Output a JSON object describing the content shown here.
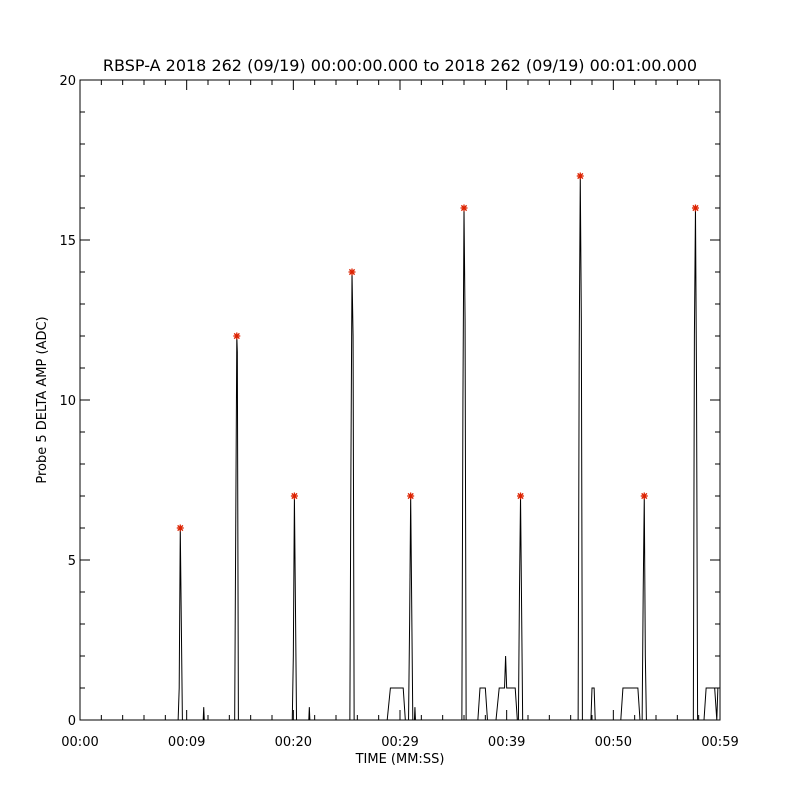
{
  "chart_data": {
    "type": "line",
    "title": "RBSP-A 2018 262 (09/19) 00:00:00.000 to 2018 262 (09/19) 00:01:00.000",
    "xlabel": "TIME (MM:SS)",
    "ylabel": "Probe 5 DELTA AMP (ADC)",
    "xlim": [
      0,
      60
    ],
    "ylim": [
      0,
      20
    ],
    "x_tick_values": [
      0,
      10,
      20,
      30,
      40,
      50,
      60
    ],
    "x_tick_labels": [
      "00:00",
      "00:09",
      "00:20",
      "00:29",
      "00:39",
      "00:50",
      "00:59"
    ],
    "y_tick_values": [
      0,
      5,
      10,
      15,
      20
    ],
    "y_tick_labels": [
      "0",
      "5",
      "10",
      "15",
      "20"
    ],
    "grid": false,
    "line_color": "#000000",
    "marker_color": "#dd2200",
    "series": [
      {
        "values": [
          [
            0,
            0
          ],
          [
            9.2,
            0
          ],
          [
            9.3,
            1
          ],
          [
            9.4,
            6
          ],
          [
            9.5,
            3
          ],
          [
            9.6,
            0
          ],
          [
            11.55,
            0
          ],
          [
            11.6,
            0.4
          ],
          [
            11.65,
            0
          ],
          [
            14.5,
            0
          ],
          [
            14.6,
            6
          ],
          [
            14.7,
            12
          ],
          [
            14.75,
            11.5
          ],
          [
            14.85,
            0
          ],
          [
            19.9,
            0
          ],
          [
            20.0,
            2
          ],
          [
            20.1,
            7
          ],
          [
            20.2,
            3.5
          ],
          [
            20.3,
            0
          ],
          [
            21.45,
            0
          ],
          [
            21.5,
            0.4
          ],
          [
            21.55,
            0
          ],
          [
            25.3,
            0
          ],
          [
            25.4,
            8
          ],
          [
            25.5,
            14
          ],
          [
            25.6,
            12
          ],
          [
            25.7,
            0
          ],
          [
            28.8,
            0
          ],
          [
            29.1,
            1
          ],
          [
            30.3,
            1
          ],
          [
            30.5,
            0
          ],
          [
            30.8,
            0
          ],
          [
            30.9,
            3
          ],
          [
            31.0,
            7
          ],
          [
            31.1,
            3.5
          ],
          [
            31.2,
            0
          ],
          [
            31.35,
            0
          ],
          [
            31.4,
            0.4
          ],
          [
            31.45,
            0
          ],
          [
            35.8,
            0
          ],
          [
            35.9,
            10
          ],
          [
            36.0,
            16
          ],
          [
            36.1,
            12.5
          ],
          [
            36.2,
            0
          ],
          [
            37.3,
            0
          ],
          [
            37.5,
            1
          ],
          [
            38.0,
            1
          ],
          [
            38.2,
            0
          ],
          [
            39.0,
            0
          ],
          [
            39.3,
            1
          ],
          [
            39.8,
            1
          ],
          [
            39.9,
            2
          ],
          [
            40.0,
            1
          ],
          [
            40.8,
            1
          ],
          [
            41.0,
            0
          ],
          [
            41.1,
            0
          ],
          [
            41.2,
            4
          ],
          [
            41.3,
            7
          ],
          [
            41.4,
            3.5
          ],
          [
            41.5,
            0
          ],
          [
            46.7,
            0
          ],
          [
            46.8,
            11.5
          ],
          [
            46.9,
            17
          ],
          [
            47.0,
            12.5
          ],
          [
            47.1,
            0
          ],
          [
            47.9,
            0
          ],
          [
            48.0,
            1
          ],
          [
            48.2,
            1
          ],
          [
            48.3,
            0
          ],
          [
            50.7,
            0
          ],
          [
            50.9,
            1
          ],
          [
            52.3,
            1
          ],
          [
            52.5,
            0
          ],
          [
            52.7,
            0
          ],
          [
            52.8,
            4
          ],
          [
            52.9,
            7
          ],
          [
            53.0,
            2
          ],
          [
            53.1,
            0
          ],
          [
            57.5,
            0
          ],
          [
            57.6,
            12
          ],
          [
            57.7,
            16
          ],
          [
            57.8,
            10.5
          ],
          [
            57.9,
            0
          ],
          [
            58.5,
            0
          ],
          [
            58.7,
            1
          ],
          [
            59.5,
            1
          ],
          [
            59.7,
            0
          ],
          [
            59.8,
            1
          ],
          [
            60,
            1
          ]
        ]
      }
    ],
    "peak_markers": [
      [
        9.4,
        6
      ],
      [
        14.7,
        12
      ],
      [
        20.1,
        7
      ],
      [
        25.5,
        14
      ],
      [
        31.0,
        7
      ],
      [
        36.0,
        16
      ],
      [
        41.3,
        7
      ],
      [
        46.9,
        17
      ],
      [
        52.9,
        7
      ],
      [
        57.7,
        16
      ]
    ]
  }
}
